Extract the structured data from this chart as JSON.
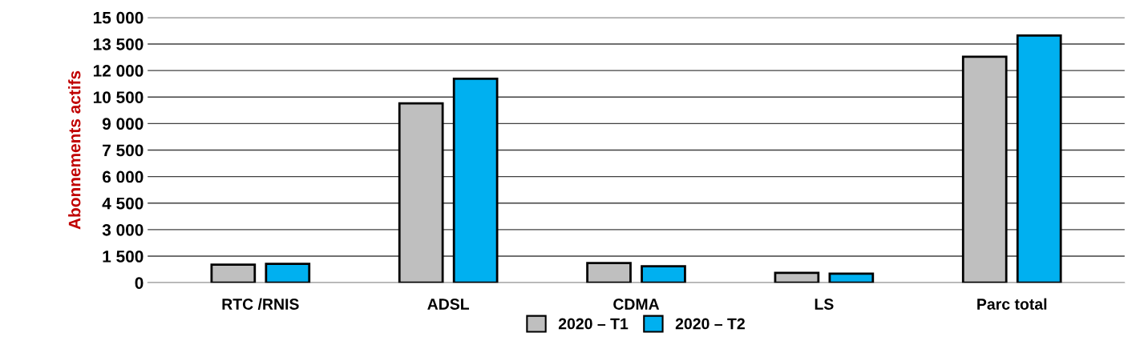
{
  "chart_data": {
    "type": "bar",
    "ylabel": "Abonnements actifs",
    "categories": [
      "RTC /RNIS",
      "ADSL",
      "CDMA",
      "LS",
      "Parc total"
    ],
    "series": [
      {
        "name": "2020 – T1",
        "color": "#bfbfbf",
        "values": [
          1020,
          10140,
          1110,
          555,
          12780
        ]
      },
      {
        "name": "2020 – T2",
        "color": "#00b0f0",
        "values": [
          1065,
          11530,
          925,
          510,
          13980
        ]
      }
    ],
    "ylim": [
      0,
      15000
    ],
    "yticks": [
      {
        "value": 0,
        "label": "0"
      },
      {
        "value": 1500,
        "label": "1 500"
      },
      {
        "value": 3000,
        "label": "3 000"
      },
      {
        "value": 4500,
        "label": "4 500"
      },
      {
        "value": 6000,
        "label": "6 000"
      },
      {
        "value": 7500,
        "label": "7 500"
      },
      {
        "value": 9000,
        "label": "9 000"
      },
      {
        "value": 10500,
        "label": "10 500"
      },
      {
        "value": 12000,
        "label": "12 000"
      },
      {
        "value": 13500,
        "label": "13 500"
      },
      {
        "value": 15000,
        "label": "15 000"
      }
    ],
    "grid": "y",
    "legend": "bottom"
  }
}
